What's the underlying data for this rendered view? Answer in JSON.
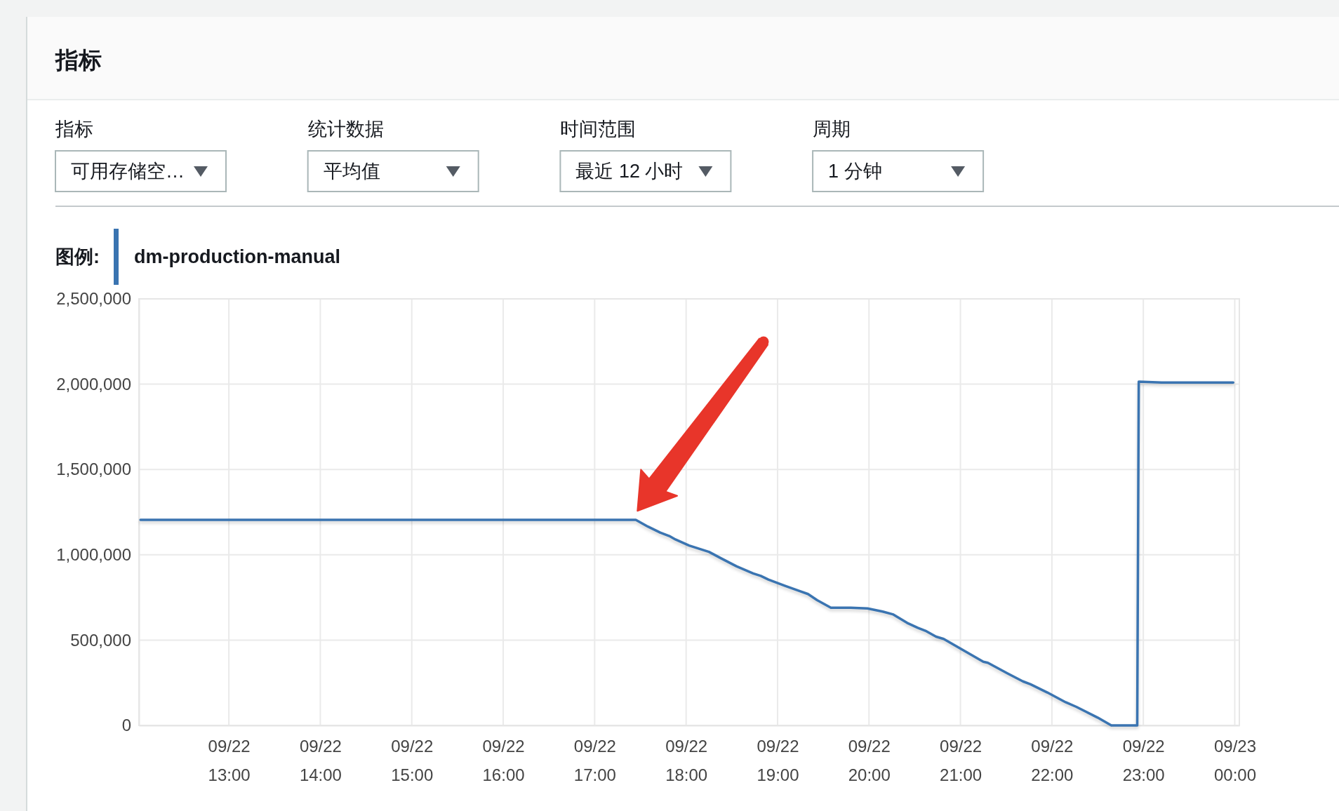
{
  "chart_data": {
    "type": "line",
    "title": "指标",
    "annotations": [
      "指标",
      "可用存储空…",
      "统计数据",
      "平均值",
      "时间范围",
      "最近 12 小时",
      "周期",
      "1 分钟"
    ],
    "legend_title": "图例:",
    "legend": "top left",
    "x": [
      "--09-22T12:02",
      "--09-22T13:00",
      "--09-22T14:00",
      "--09-22T15:00",
      "--09-22T16:00",
      "--09-22T17:00",
      "--09-22T17:27",
      "--09-22T17:35",
      "--09-22T17:43",
      "--09-22T17:49",
      "--09-22T17:53",
      "--09-22T18:02",
      "--09-22T18:15",
      "--09-22T18:23",
      "--09-22T18:33",
      "--09-22T18:44",
      "--09-22T18:49",
      "--09-22T18:54",
      "--09-22T19:05",
      "--09-22T19:15",
      "--09-22T19:20",
      "--09-22T19:26",
      "--09-22T19:35",
      "--09-22T19:48",
      "--09-22T19:59",
      "--09-22T20:09",
      "--09-22T20:16",
      "--09-22T20:25",
      "--09-22T20:32",
      "--09-22T20:37",
      "--09-22T20:44",
      "--09-22T20:49",
      "--09-22T21:01",
      "--09-22T21:15",
      "--09-22T21:18",
      "--09-22T21:31",
      "--09-22T21:41",
      "--09-22T21:46",
      "--09-22T21:57",
      "--09-22T22:09",
      "--09-22T22:16",
      "--09-22T22:30",
      "--09-22T22:39",
      "--09-22T22:56",
      "--09-22T22:57",
      "--09-22T23:12",
      "--09-22T23:59"
    ],
    "series": [
      {
        "name": "dm-production-manual",
        "color": "#3a74b1",
        "values": [
          1205000,
          1205000,
          1205000,
          1205000,
          1205000,
          1205000,
          1205000,
          1165000,
          1130000,
          1110000,
          1090000,
          1054000,
          1017000,
          979000,
          933000,
          891000,
          876000,
          855000,
          818000,
          786000,
          770000,
          734000,
          690000,
          690000,
          686000,
          667000,
          650000,
          601000,
          572000,
          555000,
          520000,
          507000,
          445000,
          373000,
          367000,
          304000,
          258000,
          241000,
          193000,
          136000,
          109000,
          46000,
          0,
          0,
          2015000,
          2010000,
          2010000
        ]
      }
    ],
    "xlim": [
      "--09-22T12:01",
      "--09-23T00:03"
    ],
    "xticks": [
      {
        "value": "--09-22T13:00",
        "label": "09/22\n13:00"
      },
      {
        "value": "--09-22T14:00",
        "label": "09/22\n14:00"
      },
      {
        "value": "--09-22T15:00",
        "label": "09/22\n15:00"
      },
      {
        "value": "--09-22T16:00",
        "label": "09/22\n16:00"
      },
      {
        "value": "--09-22T17:00",
        "label": "09/22\n17:00"
      },
      {
        "value": "--09-22T18:00",
        "label": "09/22\n18:00"
      },
      {
        "value": "--09-22T19:00",
        "label": "09/22\n19:00"
      },
      {
        "value": "--09-22T20:00",
        "label": "09/22\n20:00"
      },
      {
        "value": "--09-22T21:00",
        "label": "09/22\n21:00"
      },
      {
        "value": "--09-22T22:00",
        "label": "09/22\n22:00"
      },
      {
        "value": "--09-22T23:00",
        "label": "09/22\n23:00"
      },
      {
        "value": "--09-23T00:00",
        "label": "09/23\n00:00"
      }
    ],
    "ylim": [
      0,
      2500000
    ],
    "yticks": [
      {
        "value": 0,
        "label": "0"
      },
      {
        "value": 500000,
        "label": "500,000"
      },
      {
        "value": 1000000,
        "label": "1,000,000"
      },
      {
        "value": 1500000,
        "label": "1,500,000"
      },
      {
        "value": 2000000,
        "label": "2,000,000"
      },
      {
        "value": 2500000,
        "label": "2,500,000"
      }
    ],
    "grid": true,
    "line_style": "solid"
  }
}
